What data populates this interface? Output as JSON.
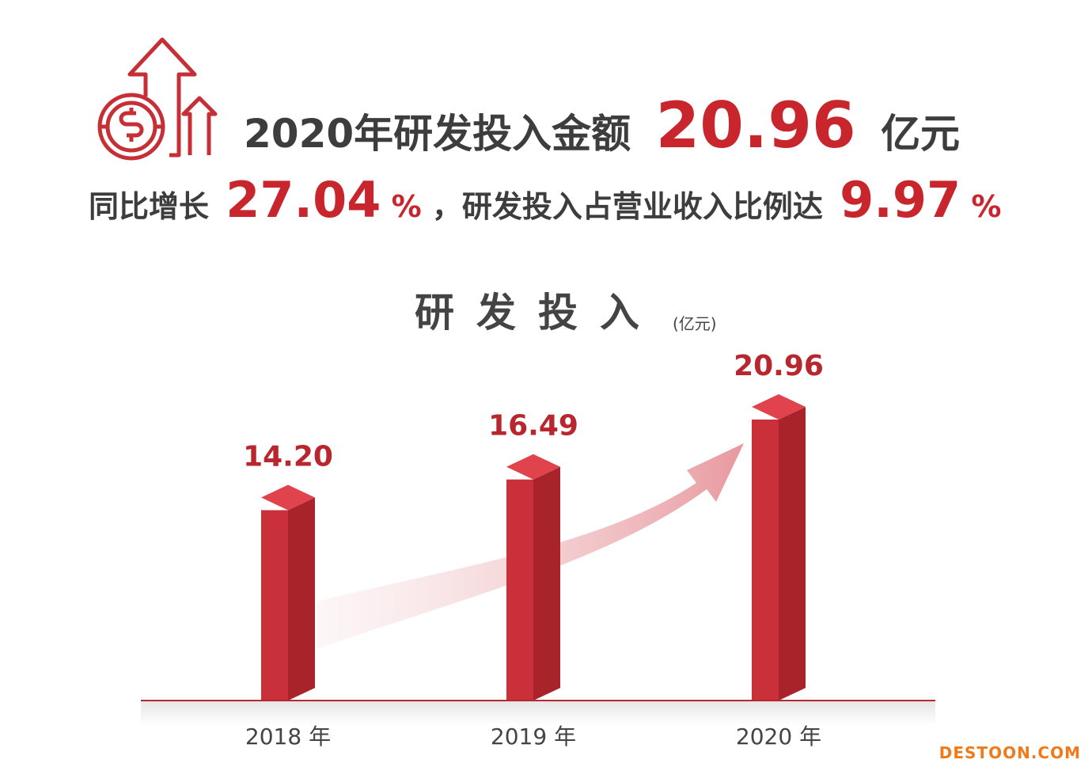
{
  "header": {
    "line1": [
      "2020年研发投入金额",
      "20.96",
      "亿元"
    ],
    "line2": [
      "同比增长",
      "27.04",
      "%",
      "，研发投入占营业收入比例达",
      "9.97",
      "%"
    ]
  },
  "chart_data": {
    "type": "bar",
    "title": "研发投入",
    "unit": "(亿元)",
    "categories": [
      "2018 年",
      "2019 年",
      "2020 年"
    ],
    "values": [
      14.2,
      16.49,
      20.96
    ],
    "value_labels": [
      "14.20",
      "16.49",
      "20.96"
    ],
    "color": "#c9303a"
  },
  "watermark": "DESTOON.COM"
}
